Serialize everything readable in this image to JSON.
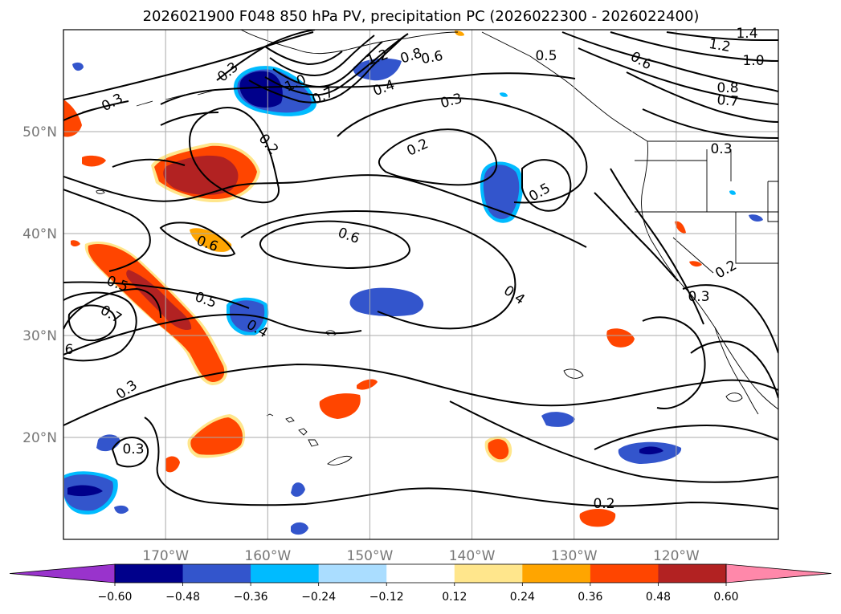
{
  "title": "2026021900 F048 850 hPa PV, precipitation PC (2026022300 - 2026022400)",
  "map": {
    "lon_range": [
      -180,
      -110
    ],
    "lat_range": [
      10,
      60
    ],
    "lon_ticks": [
      -170,
      -160,
      -150,
      -140,
      -130,
      -120
    ],
    "lat_ticks": [
      20,
      30,
      40,
      50
    ],
    "lon_tick_labels": [
      "170°W",
      "160°W",
      "150°W",
      "140°W",
      "130°W",
      "120°W"
    ],
    "lat_tick_labels": [
      "20°N",
      "30°N",
      "40°N",
      "50°N"
    ],
    "grid": true
  },
  "colorbar": {
    "levels": [
      -0.6,
      -0.48,
      -0.36,
      -0.24,
      -0.12,
      0.12,
      0.24,
      0.36,
      0.48,
      0.6
    ],
    "labels": [
      "−0.60",
      "−0.48",
      "−0.36",
      "−0.24",
      "−0.12",
      "0.12",
      "0.24",
      "0.36",
      "0.48",
      "0.60"
    ],
    "colors": [
      "#9933cc",
      "#00008b",
      "#3355cc",
      "#00bbff",
      "#aaddff",
      "#ffffff",
      "#ffe68c",
      "#ffa500",
      "#ff4500",
      "#b22222",
      "#ff88aa"
    ],
    "extend": "both"
  },
  "contour_labels": [
    "0.3",
    "1.0",
    "0.7",
    "1.2",
    "0.8",
    "0.6",
    "0.5",
    "1.4",
    "1.2",
    "1.0",
    "0.8",
    "0.7",
    "0.6",
    "0.3",
    "0.4",
    "0.3",
    "0.2",
    "0.2",
    "0.5",
    "0.3",
    "0.6",
    "0.6",
    "0.5",
    "0.5",
    "0.7",
    "0.4",
    "0.4",
    "0.3",
    "0.3",
    "0.2",
    "0.2",
    "6",
    "0.3"
  ],
  "precip_colors": {
    "neg_deep": "#00008b",
    "neg_mid": "#3355cc",
    "neg_light": "#00bbff",
    "pos_light": "#ffe68c",
    "pos_mid": "#ffa500",
    "pos_strong": "#ff4500",
    "pos_deep": "#b22222"
  }
}
